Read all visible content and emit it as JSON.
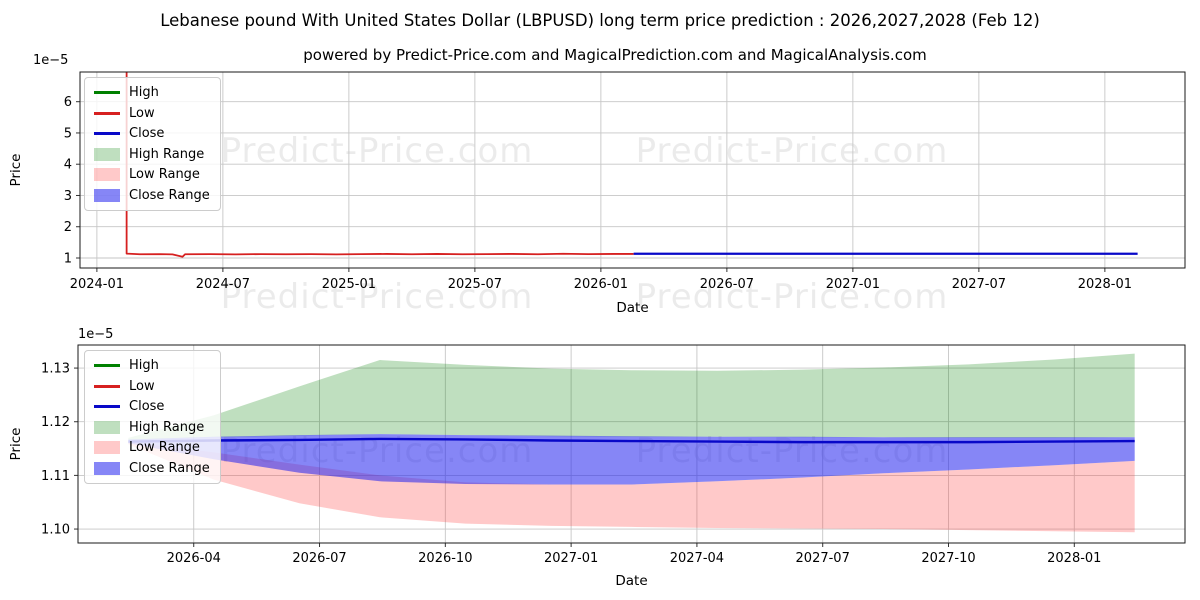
{
  "title": "Lebanese pound With United States Dollar (LBPUSD) long term price prediction : 2026,2027,2028 (Feb 12)",
  "subtitle": "powered by Predict-Price.com and MagicalPrediction.com and MagicalAnalysis.com",
  "watermark": {
    "text": "Predict-Price.com",
    "color": "rgba(0,0,0,0.08)"
  },
  "colors": {
    "high_line": "#008000",
    "low_line": "#d62020",
    "close_line": "#0808c8",
    "high_range_fill": "rgba(0,128,0,0.25)",
    "low_range_fill": "rgba(255,60,60,0.28)",
    "close_range_fill": "rgba(35,35,238,0.55)",
    "grid": "#c6c6c6",
    "axis_border": "#1a1a1a"
  },
  "chart_data": [
    {
      "type": "line",
      "name": "long-term price history and prediction",
      "xlabel": "Date",
      "ylabel": "Price",
      "y_offset_label": "1e−5",
      "grid": true,
      "legend_position": "upper left",
      "xlim": [
        2023.933,
        2028.318
      ],
      "ylim": [
        0.68,
        6.95
      ],
      "x_ticks": [
        {
          "v": 2024.0,
          "label": "2024-01"
        },
        {
          "v": 2024.5,
          "label": "2024-07"
        },
        {
          "v": 2025.0,
          "label": "2025-01"
        },
        {
          "v": 2025.5,
          "label": "2025-07"
        },
        {
          "v": 2026.0,
          "label": "2026-01"
        },
        {
          "v": 2026.5,
          "label": "2026-07"
        },
        {
          "v": 2027.0,
          "label": "2027-01"
        },
        {
          "v": 2027.5,
          "label": "2027-07"
        },
        {
          "v": 2028.0,
          "label": "2028-01"
        }
      ],
      "y_ticks": [
        {
          "v": 1,
          "label": "1"
        },
        {
          "v": 2,
          "label": "2"
        },
        {
          "v": 3,
          "label": "3"
        },
        {
          "v": 4,
          "label": "4"
        },
        {
          "v": 5,
          "label": "5"
        },
        {
          "v": 6,
          "label": "6"
        }
      ],
      "legend": [
        {
          "label": "High",
          "type": "line",
          "color": "#008000"
        },
        {
          "label": "Low",
          "type": "line",
          "color": "#d62020"
        },
        {
          "label": "Close",
          "type": "line",
          "color": "#0808c8"
        },
        {
          "label": "High Range",
          "type": "fill",
          "color": "rgba(0,128,0,0.25)"
        },
        {
          "label": "Low Range",
          "type": "fill",
          "color": "rgba(255,60,60,0.28)"
        },
        {
          "label": "Close Range",
          "type": "fill",
          "color": "rgba(35,35,238,0.55)"
        }
      ],
      "series": [
        {
          "name": "Low (history)",
          "color": "#d62020",
          "width": 1.8,
          "points": [
            [
              2024.118,
              6.95
            ],
            [
              2024.118,
              1.14
            ],
            [
              2024.17,
              1.12
            ],
            [
              2024.25,
              1.125
            ],
            [
              2024.3,
              1.115
            ],
            [
              2024.34,
              1.04
            ],
            [
              2024.35,
              1.12
            ],
            [
              2024.45,
              1.125
            ],
            [
              2024.55,
              1.115
            ],
            [
              2024.65,
              1.125
            ],
            [
              2024.75,
              1.12
            ],
            [
              2024.85,
              1.125
            ],
            [
              2024.95,
              1.115
            ],
            [
              2025.05,
              1.125
            ],
            [
              2025.15,
              1.13
            ],
            [
              2025.25,
              1.12
            ],
            [
              2025.35,
              1.13
            ],
            [
              2025.45,
              1.12
            ],
            [
              2025.55,
              1.125
            ],
            [
              2025.65,
              1.13
            ],
            [
              2025.75,
              1.12
            ],
            [
              2025.85,
              1.135
            ],
            [
              2025.95,
              1.125
            ],
            [
              2026.05,
              1.13
            ],
            [
              2026.13,
              1.13
            ]
          ]
        },
        {
          "name": "Close (prediction)",
          "color": "#0808c8",
          "width": 2.2,
          "points": [
            [
              2026.13,
              1.135
            ],
            [
              2027.0,
              1.135
            ],
            [
              2028.13,
              1.135
            ]
          ]
        }
      ]
    },
    {
      "type": "area+line",
      "name": "prediction detail 2026-2028",
      "xlabel": "Date",
      "ylabel": "Price",
      "y_offset_label": "1e−5",
      "grid": true,
      "legend_position": "upper left",
      "xlim": [
        2026.02,
        2028.22
      ],
      "ylim": [
        1.0974,
        1.1343
      ],
      "x_ticks": [
        {
          "v": 2026.25,
          "label": "2026-04"
        },
        {
          "v": 2026.5,
          "label": "2026-07"
        },
        {
          "v": 2026.75,
          "label": "2026-10"
        },
        {
          "v": 2027.0,
          "label": "2027-01"
        },
        {
          "v": 2027.25,
          "label": "2027-04"
        },
        {
          "v": 2027.5,
          "label": "2027-07"
        },
        {
          "v": 2027.75,
          "label": "2027-10"
        },
        {
          "v": 2028.0,
          "label": "2028-01"
        }
      ],
      "y_ticks": [
        {
          "v": 1.1,
          "label": "1.10"
        },
        {
          "v": 1.11,
          "label": "1.11"
        },
        {
          "v": 1.12,
          "label": "1.12"
        },
        {
          "v": 1.13,
          "label": "1.13"
        }
      ],
      "legend": [
        {
          "label": "High",
          "type": "line",
          "color": "#008000"
        },
        {
          "label": "Low",
          "type": "line",
          "color": "#d62020"
        },
        {
          "label": "Close",
          "type": "line",
          "color": "#0808c8"
        },
        {
          "label": "High Range",
          "type": "fill",
          "color": "rgba(0,128,0,0.25)"
        },
        {
          "label": "Low Range",
          "type": "fill",
          "color": "rgba(255,60,60,0.28)"
        },
        {
          "label": "Close Range",
          "type": "fill",
          "color": "rgba(35,35,238,0.55)"
        }
      ],
      "bands": [
        {
          "name": "High Range",
          "color": "rgba(0,128,0,0.25)",
          "x": [
            2026.12,
            2026.29,
            2026.46,
            2026.62,
            2026.79,
            2026.96,
            2027.12,
            2027.29,
            2027.46,
            2027.62,
            2027.79,
            2027.96,
            2028.12
          ],
          "top": [
            1.117,
            1.1212,
            1.1266,
            1.1315,
            1.1306,
            1.1299,
            1.1296,
            1.1295,
            1.1297,
            1.1301,
            1.1307,
            1.1316,
            1.1327
          ],
          "bottom": [
            1.1166,
            1.1171,
            1.1174,
            1.1177,
            1.1175,
            1.1173,
            1.1172,
            1.1172,
            1.1171,
            1.1171,
            1.117,
            1.117,
            1.1171
          ]
        },
        {
          "name": "Low Range",
          "color": "rgba(255,60,60,0.28)",
          "x": [
            2026.12,
            2026.29,
            2026.46,
            2026.62,
            2026.79,
            2026.96,
            2027.12,
            2027.29,
            2027.46,
            2027.62,
            2027.79,
            2027.96,
            2028.12
          ],
          "top": [
            1.1162,
            1.1143,
            1.112,
            1.11,
            1.1087,
            1.1083,
            1.1083,
            1.1089,
            1.1096,
            1.1104,
            1.1111,
            1.1119,
            1.1127
          ],
          "bottom": [
            1.1158,
            1.1092,
            1.1048,
            1.1022,
            1.101,
            1.1006,
            1.1004,
            1.1002,
            1.1001,
            1.1,
            1.0998,
            1.0996,
            1.0994
          ]
        },
        {
          "name": "Close Range",
          "color": "rgba(35,35,238,0.55)",
          "x": [
            2026.12,
            2026.29,
            2026.46,
            2026.62,
            2026.79,
            2026.96,
            2027.12,
            2027.29,
            2027.46,
            2027.62,
            2027.79,
            2027.96,
            2028.12
          ],
          "top": [
            1.1167,
            1.1172,
            1.1175,
            1.1177,
            1.1175,
            1.1174,
            1.1173,
            1.1172,
            1.1172,
            1.1171,
            1.1171,
            1.1171,
            1.1171
          ],
          "bottom": [
            1.116,
            1.113,
            1.1105,
            1.1089,
            1.1084,
            1.1083,
            1.1083,
            1.1089,
            1.1096,
            1.1104,
            1.1111,
            1.1119,
            1.1127
          ]
        }
      ],
      "series": [
        {
          "name": "Close",
          "color": "#0808c8",
          "width": 2.4,
          "points": [
            [
              2026.12,
              1.1163
            ],
            [
              2026.29,
              1.1165
            ],
            [
              2026.46,
              1.1166
            ],
            [
              2026.62,
              1.1168
            ],
            [
              2026.79,
              1.1167
            ],
            [
              2026.96,
              1.1165
            ],
            [
              2027.12,
              1.1164
            ],
            [
              2027.29,
              1.1163
            ],
            [
              2027.46,
              1.1162
            ],
            [
              2027.62,
              1.1162
            ],
            [
              2027.79,
              1.1162
            ],
            [
              2027.96,
              1.1163
            ],
            [
              2028.12,
              1.1164
            ]
          ]
        }
      ]
    }
  ]
}
